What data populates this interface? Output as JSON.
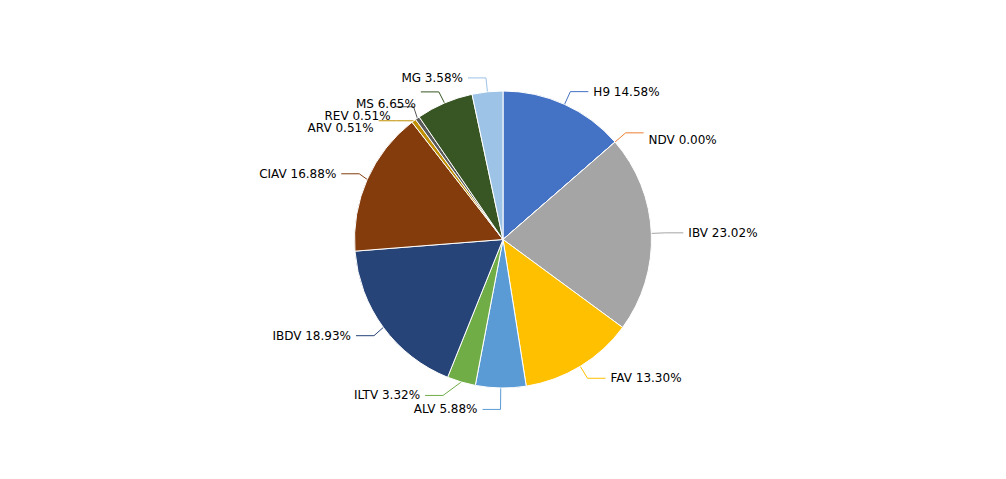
{
  "chart_data": {
    "type": "pie",
    "categories": [
      "H9 14.58%",
      "NDV 0.00%",
      "IBV 23.02%",
      "FAV 13.30%",
      "ALV 5.88%",
      "ILTV 3.32%",
      "IBDV 18.93%",
      "CIAV 16.88%",
      "ARV 0.51%",
      "REV 0.51%",
      "MS 6.65%",
      "MG 3.58%"
    ],
    "values": [
      14.58,
      0.0,
      23.02,
      13.3,
      5.88,
      3.32,
      18.93,
      16.88,
      0.51,
      0.51,
      6.65,
      3.58
    ],
    "colors": [
      "#4472C4",
      "#ED7D31",
      "#A5A5A5",
      "#FFC000",
      "#5B9BD5",
      "#70AD47",
      "#264478",
      "#843C0C",
      "#BF8F00",
      "#595959",
      "#375623",
      "#9DC3E6"
    ]
  }
}
